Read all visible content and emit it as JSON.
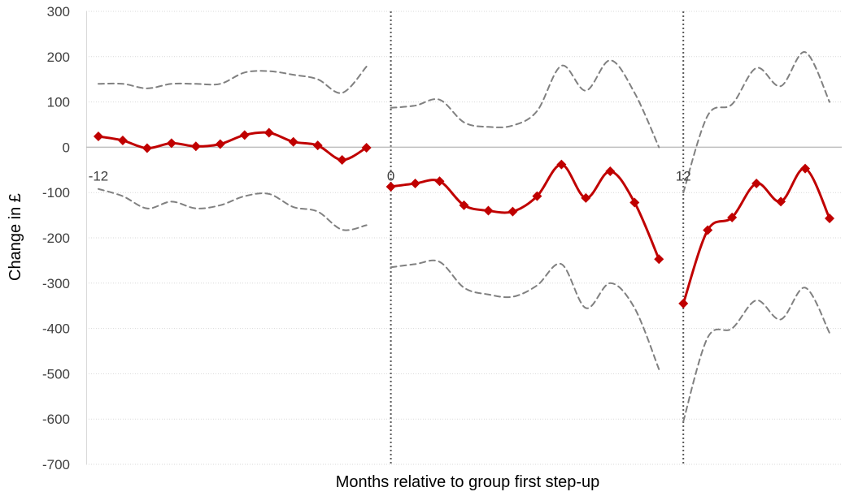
{
  "chart_data": {
    "type": "line",
    "title": "",
    "xlabel": "Months relative to group first step-up",
    "ylabel": "Change in £",
    "xlim": [
      -12.5,
      18.5
    ],
    "ylim": [
      -700,
      300
    ],
    "y_ticks": [
      300,
      200,
      100,
      0,
      -100,
      -200,
      -300,
      -400,
      -500,
      -600,
      -700
    ],
    "x_ticks": [
      -12,
      0,
      12
    ],
    "x_tick_labels": [
      "-12",
      "0",
      "12"
    ],
    "vertical_lines": [
      0,
      12
    ],
    "grid": "horizontal dotted",
    "legend": "none",
    "colors": {
      "estimate": "#C00000",
      "ci": "#808080",
      "axis": "#404040",
      "grid": "#D9D9D9"
    },
    "series": [
      {
        "role": "estimate",
        "style": "solid-with-diamond-markers",
        "segments": [
          {
            "x": [
              -12,
              -11,
              -10,
              -9,
              -8,
              -7,
              -6,
              -5,
              -4,
              -3,
              -2,
              -1
            ],
            "y": [
              24,
              15,
              -2,
              9,
              2,
              7,
              27,
              32,
              12,
              4,
              -28,
              -1
            ]
          },
          {
            "x": [
              0,
              1,
              2,
              3,
              4,
              5,
              6,
              7,
              8,
              9,
              10,
              11
            ],
            "y": [
              -87,
              -80,
              -75,
              -128,
              -140,
              -142,
              -108,
              -38,
              -112,
              -53,
              -122,
              -247
            ]
          },
          {
            "x": [
              12,
              13,
              14,
              15,
              16,
              17,
              18
            ],
            "y": [
              -345,
              -183,
              -155,
              -80,
              -120,
              -47,
              -157
            ]
          }
        ]
      },
      {
        "role": "upper-ci",
        "style": "dashed",
        "segments": [
          {
            "x": [
              -12,
              -11,
              -10,
              -9,
              -8,
              -7,
              -6,
              -5,
              -4,
              -3,
              -2,
              -1
            ],
            "y": [
              140,
              140,
              130,
              140,
              140,
              140,
              165,
              168,
              160,
              150,
              120,
              178
            ]
          },
          {
            "x": [
              0,
              1,
              2,
              3,
              4,
              5,
              6,
              7,
              8,
              9,
              10,
              11
            ],
            "y": [
              87,
              92,
              105,
              55,
              45,
              48,
              80,
              180,
              125,
              192,
              120,
              0
            ]
          },
          {
            "x": [
              12,
              13,
              14,
              15,
              16,
              17,
              18
            ],
            "y": [
              -100,
              70,
              95,
              175,
              135,
              210,
              100
            ]
          }
        ]
      },
      {
        "role": "lower-ci",
        "style": "dashed",
        "segments": [
          {
            "x": [
              -12,
              -11,
              -10,
              -9,
              -8,
              -7,
              -6,
              -5,
              -4,
              -3,
              -2,
              -1
            ],
            "y": [
              -92,
              -108,
              -135,
              -120,
              -135,
              -128,
              -108,
              -103,
              -132,
              -142,
              -182,
              -172
            ]
          },
          {
            "x": [
              0,
              1,
              2,
              3,
              4,
              5,
              6,
              7,
              8,
              9,
              10,
              11
            ],
            "y": [
              -265,
              -258,
              -253,
              -310,
              -325,
              -330,
              -305,
              -258,
              -355,
              -300,
              -355,
              -490
            ]
          },
          {
            "x": [
              12,
              13,
              14,
              15,
              16,
              17,
              18
            ],
            "y": [
              -605,
              -420,
              -400,
              -338,
              -380,
              -310,
              -410
            ]
          }
        ]
      }
    ]
  }
}
